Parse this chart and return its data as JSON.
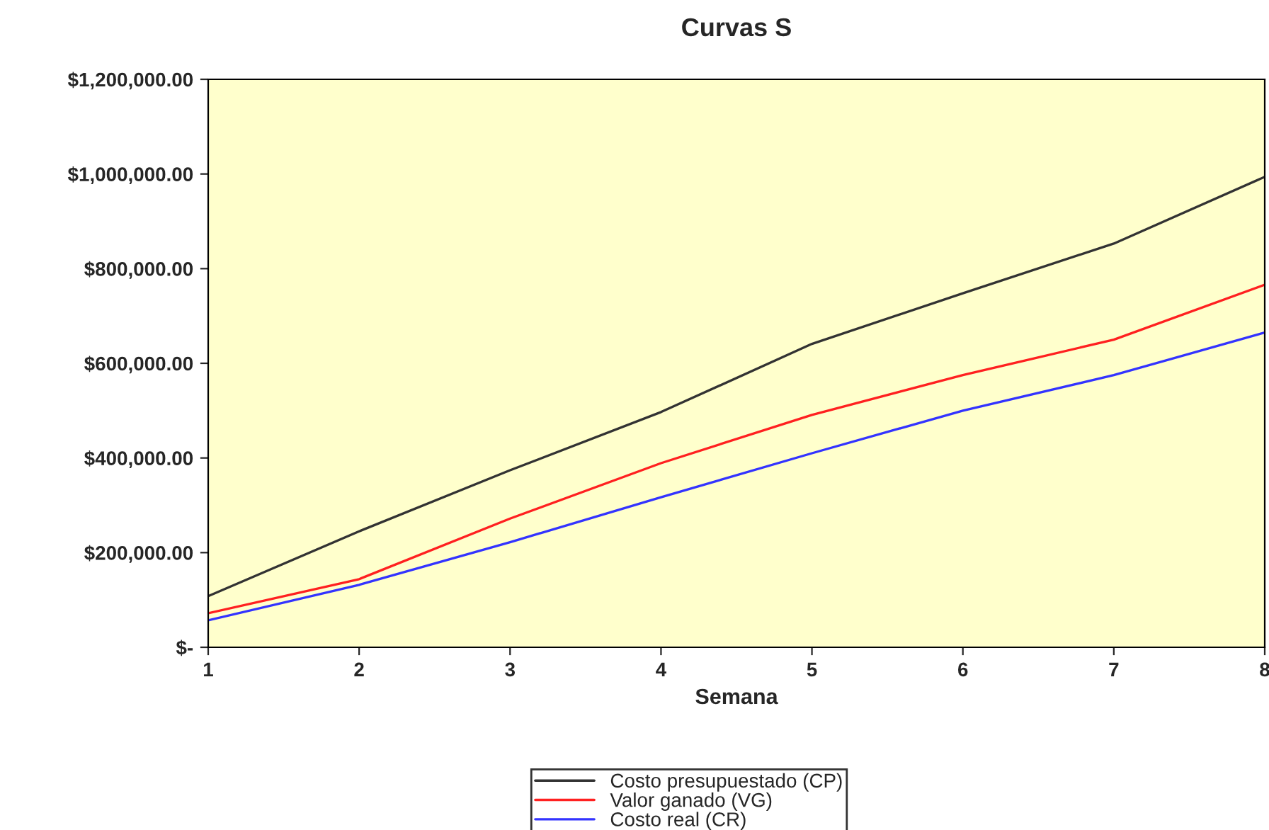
{
  "chart_data": {
    "type": "line",
    "title": "Curvas S",
    "xlabel": "Semana",
    "x": [
      1,
      2,
      3,
      4,
      5,
      6,
      7,
      8
    ],
    "series": [
      {
        "name": "Costo presupuestado (CP)",
        "color": "#333333",
        "values": [
          108000,
          245000,
          374000,
          497000,
          641000,
          748000,
          853000,
          994000
        ]
      },
      {
        "name": "Valor ganado (VG)",
        "color": "#ff2020",
        "values": [
          72000,
          144000,
          272000,
          389000,
          491000,
          575000,
          650000,
          766000
        ]
      },
      {
        "name": "Costo real (CR)",
        "color": "#3333ff",
        "values": [
          57000,
          132000,
          222000,
          317000,
          410000,
          500000,
          575000,
          665000
        ]
      }
    ],
    "xlim": [
      1,
      8
    ],
    "xticks": [
      1,
      2,
      3,
      4,
      5,
      6,
      7,
      8
    ],
    "ylim": [
      0,
      1200000
    ],
    "yticks": [
      {
        "value": 0,
        "label": "$-"
      },
      {
        "value": 200000,
        "label": "$200,000.00"
      },
      {
        "value": 400000,
        "label": "$400,000.00"
      },
      {
        "value": 600000,
        "label": "$600,000.00"
      },
      {
        "value": 800000,
        "label": "$800,000.00"
      },
      {
        "value": 1000000,
        "label": "$1,000,000.00"
      },
      {
        "value": 1200000,
        "label": "$1,200,000.00"
      }
    ],
    "grid": false,
    "legend": "bottom",
    "marker": "none",
    "line_style": "solid"
  }
}
